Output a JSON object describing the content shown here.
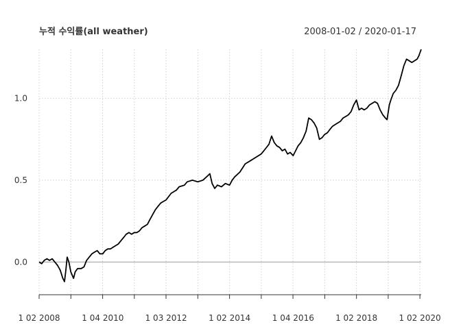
{
  "chart_data": {
    "type": "line",
    "title": "누적 수익률(all weather)",
    "date_range": "2008-01-02 / 2020-01-17",
    "xlabel": "",
    "ylabel": "",
    "xlim": [
      "2008-01-02",
      "2020-01-17"
    ],
    "ylim": [
      -0.2,
      1.3
    ],
    "y_ticks": [
      0.0,
      0.5,
      1.0
    ],
    "y_tick_labels": [
      "0.0",
      "0.5",
      "1.0"
    ],
    "x_tick_dates": [
      "2008-01-02",
      "2010-01-04",
      "2012-01-03",
      "2014-01-02",
      "2016-01-04",
      "2018-01-02",
      "2020-01-02"
    ],
    "x_tick_labels": [
      "1 02 2008",
      "1 04 2010",
      "1 03 2012",
      "1 02 2014",
      "1 04 2016",
      "1 02 2018",
      "1 02 2020"
    ],
    "grid": true,
    "series": [
      {
        "color": "#000000",
        "points": [
          [
            "2008-01-02",
            0.0
          ],
          [
            "2008-02-01",
            -0.01
          ],
          [
            "2008-03-01",
            0.01
          ],
          [
            "2008-04-01",
            0.02
          ],
          [
            "2008-05-01",
            0.01
          ],
          [
            "2008-06-01",
            0.02
          ],
          [
            "2008-07-01",
            0.0
          ],
          [
            "2008-08-01",
            -0.02
          ],
          [
            "2008-09-01",
            -0.05
          ],
          [
            "2008-10-01",
            -0.1
          ],
          [
            "2008-10-20",
            -0.12
          ],
          [
            "2008-11-05",
            -0.05
          ],
          [
            "2008-11-20",
            0.03
          ],
          [
            "2008-12-10",
            0.0
          ],
          [
            "2009-01-01",
            -0.06
          ],
          [
            "2009-02-01",
            -0.1
          ],
          [
            "2009-02-20",
            -0.06
          ],
          [
            "2009-03-20",
            -0.04
          ],
          [
            "2009-05-01",
            -0.04
          ],
          [
            "2009-06-01",
            -0.03
          ],
          [
            "2009-07-01",
            0.01
          ],
          [
            "2009-08-01",
            0.03
          ],
          [
            "2009-09-01",
            0.05
          ],
          [
            "2009-10-01",
            0.06
          ],
          [
            "2009-11-01",
            0.07
          ],
          [
            "2009-12-01",
            0.05
          ],
          [
            "2010-01-04",
            0.05
          ],
          [
            "2010-02-01",
            0.07
          ],
          [
            "2010-03-01",
            0.08
          ],
          [
            "2010-04-01",
            0.08
          ],
          [
            "2010-05-01",
            0.09
          ],
          [
            "2010-06-01",
            0.1
          ],
          [
            "2010-07-01",
            0.11
          ],
          [
            "2010-08-01",
            0.13
          ],
          [
            "2010-09-01",
            0.15
          ],
          [
            "2010-10-01",
            0.17
          ],
          [
            "2010-11-01",
            0.18
          ],
          [
            "2010-12-01",
            0.17
          ],
          [
            "2011-01-01",
            0.18
          ],
          [
            "2011-02-01",
            0.18
          ],
          [
            "2011-03-01",
            0.19
          ],
          [
            "2011-04-01",
            0.21
          ],
          [
            "2011-05-01",
            0.22
          ],
          [
            "2011-06-01",
            0.23
          ],
          [
            "2011-07-01",
            0.26
          ],
          [
            "2011-08-01",
            0.29
          ],
          [
            "2011-09-01",
            0.32
          ],
          [
            "2011-10-01",
            0.34
          ],
          [
            "2011-11-01",
            0.36
          ],
          [
            "2011-12-01",
            0.37
          ],
          [
            "2012-01-03",
            0.38
          ],
          [
            "2012-03-01",
            0.42
          ],
          [
            "2012-05-01",
            0.44
          ],
          [
            "2012-06-01",
            0.46
          ],
          [
            "2012-08-01",
            0.47
          ],
          [
            "2012-09-01",
            0.49
          ],
          [
            "2012-11-01",
            0.5
          ],
          [
            "2013-01-01",
            0.49
          ],
          [
            "2013-03-01",
            0.5
          ],
          [
            "2013-05-01",
            0.53
          ],
          [
            "2013-05-20",
            0.54
          ],
          [
            "2013-06-15",
            0.48
          ],
          [
            "2013-07-15",
            0.45
          ],
          [
            "2013-08-15",
            0.47
          ],
          [
            "2013-10-01",
            0.46
          ],
          [
            "2013-11-15",
            0.48
          ],
          [
            "2014-01-02",
            0.47
          ],
          [
            "2014-02-01",
            0.5
          ],
          [
            "2014-03-01",
            0.52
          ],
          [
            "2014-05-01",
            0.55
          ],
          [
            "2014-07-01",
            0.6
          ],
          [
            "2014-09-01",
            0.62
          ],
          [
            "2014-11-01",
            0.64
          ],
          [
            "2015-01-01",
            0.66
          ],
          [
            "2015-02-01",
            0.68
          ],
          [
            "2015-04-01",
            0.72
          ],
          [
            "2015-05-01",
            0.77
          ],
          [
            "2015-06-01",
            0.73
          ],
          [
            "2015-07-01",
            0.71
          ],
          [
            "2015-08-01",
            0.7
          ],
          [
            "2015-09-01",
            0.68
          ],
          [
            "2015-10-01",
            0.69
          ],
          [
            "2015-11-01",
            0.66
          ],
          [
            "2015-12-01",
            0.67
          ],
          [
            "2016-01-04",
            0.65
          ],
          [
            "2016-02-01",
            0.68
          ],
          [
            "2016-03-01",
            0.71
          ],
          [
            "2016-04-01",
            0.73
          ],
          [
            "2016-05-01",
            0.76
          ],
          [
            "2016-06-01",
            0.8
          ],
          [
            "2016-07-01",
            0.88
          ],
          [
            "2016-08-01",
            0.87
          ],
          [
            "2016-09-01",
            0.85
          ],
          [
            "2016-10-01",
            0.82
          ],
          [
            "2016-11-01",
            0.75
          ],
          [
            "2016-12-01",
            0.76
          ],
          [
            "2017-01-01",
            0.78
          ],
          [
            "2017-02-01",
            0.79
          ],
          [
            "2017-03-01",
            0.81
          ],
          [
            "2017-04-01",
            0.83
          ],
          [
            "2017-05-01",
            0.84
          ],
          [
            "2017-06-01",
            0.85
          ],
          [
            "2017-07-01",
            0.86
          ],
          [
            "2017-08-01",
            0.88
          ],
          [
            "2017-09-01",
            0.89
          ],
          [
            "2017-10-01",
            0.9
          ],
          [
            "2017-11-01",
            0.92
          ],
          [
            "2017-12-01",
            0.96
          ],
          [
            "2018-01-02",
            0.99
          ],
          [
            "2018-02-01",
            0.93
          ],
          [
            "2018-03-01",
            0.94
          ],
          [
            "2018-04-01",
            0.93
          ],
          [
            "2018-05-01",
            0.94
          ],
          [
            "2018-06-01",
            0.96
          ],
          [
            "2018-07-01",
            0.97
          ],
          [
            "2018-08-01",
            0.98
          ],
          [
            "2018-09-01",
            0.97
          ],
          [
            "2018-10-01",
            0.93
          ],
          [
            "2018-11-01",
            0.9
          ],
          [
            "2018-12-01",
            0.88
          ],
          [
            "2018-12-20",
            0.87
          ],
          [
            "2019-01-15",
            0.96
          ],
          [
            "2019-02-01",
            0.99
          ],
          [
            "2019-03-01",
            1.03
          ],
          [
            "2019-04-01",
            1.05
          ],
          [
            "2019-05-01",
            1.08
          ],
          [
            "2019-06-01",
            1.14
          ],
          [
            "2019-07-01",
            1.2
          ],
          [
            "2019-08-01",
            1.24
          ],
          [
            "2019-09-01",
            1.23
          ],
          [
            "2019-10-01",
            1.22
          ],
          [
            "2019-11-01",
            1.23
          ],
          [
            "2019-12-01",
            1.24
          ],
          [
            "2019-12-20",
            1.26
          ],
          [
            "2020-01-17",
            1.3
          ]
        ]
      }
    ]
  }
}
